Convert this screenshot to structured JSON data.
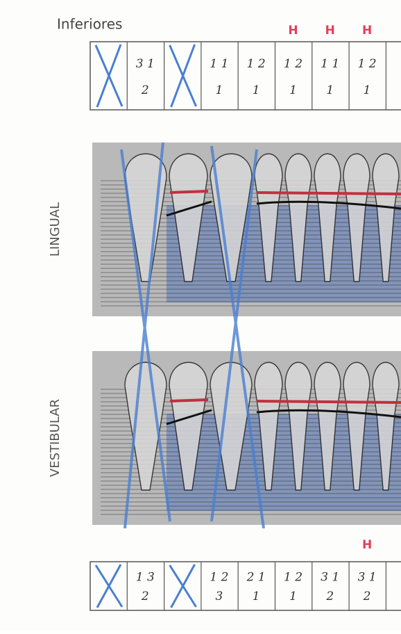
{
  "header": {
    "title": "Inferiores"
  },
  "top_table": {
    "marks": [
      "H",
      "H",
      "H"
    ],
    "upper": [
      "3 1",
      "1 1",
      "1 2",
      "1 2",
      "1 1",
      "1 2"
    ],
    "lower": [
      "2",
      "1",
      "1",
      "1",
      "1",
      "1"
    ]
  },
  "lingual": {
    "label": "LINGUAL"
  },
  "vestibular": {
    "label": "VESTIBULAR"
  },
  "bottom_table": {
    "marks": [
      "H"
    ],
    "upper": [
      "1 3",
      "1 2",
      "2 1",
      "1 2",
      "3 1",
      "3 1"
    ],
    "lower": [
      "2",
      "3",
      "1",
      "1",
      "2",
      "2"
    ]
  }
}
